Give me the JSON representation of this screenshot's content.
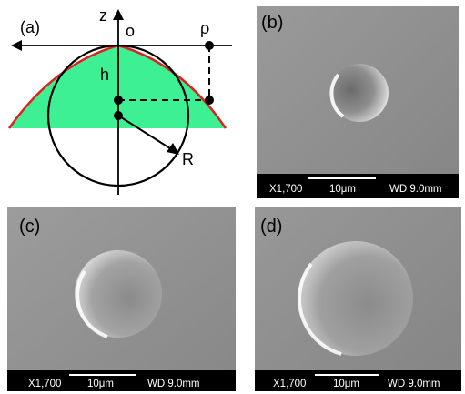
{
  "panel_a": {
    "label": "(a)",
    "axis_z": "z",
    "origin": "o",
    "rho": "ρ",
    "height": "h",
    "radius": "R",
    "colors": {
      "fill": "#3df093",
      "profile": "#e0201e",
      "lines": "#000000"
    }
  },
  "panel_b": {
    "label": "(b)",
    "magnification": "X1,700",
    "scale": "10μm",
    "wd": "WD 9.0mm"
  },
  "panel_c": {
    "label": "(c)",
    "magnification": "X1,700",
    "scale": "10μm",
    "wd": "WD 9.0mm"
  },
  "panel_d": {
    "label": "(d)",
    "magnification": "X1,700",
    "scale": "10μm",
    "wd": "WD 9.0mm"
  },
  "sem_colors": {
    "background": "#8f8f8f",
    "scale_bar": "#000000"
  }
}
